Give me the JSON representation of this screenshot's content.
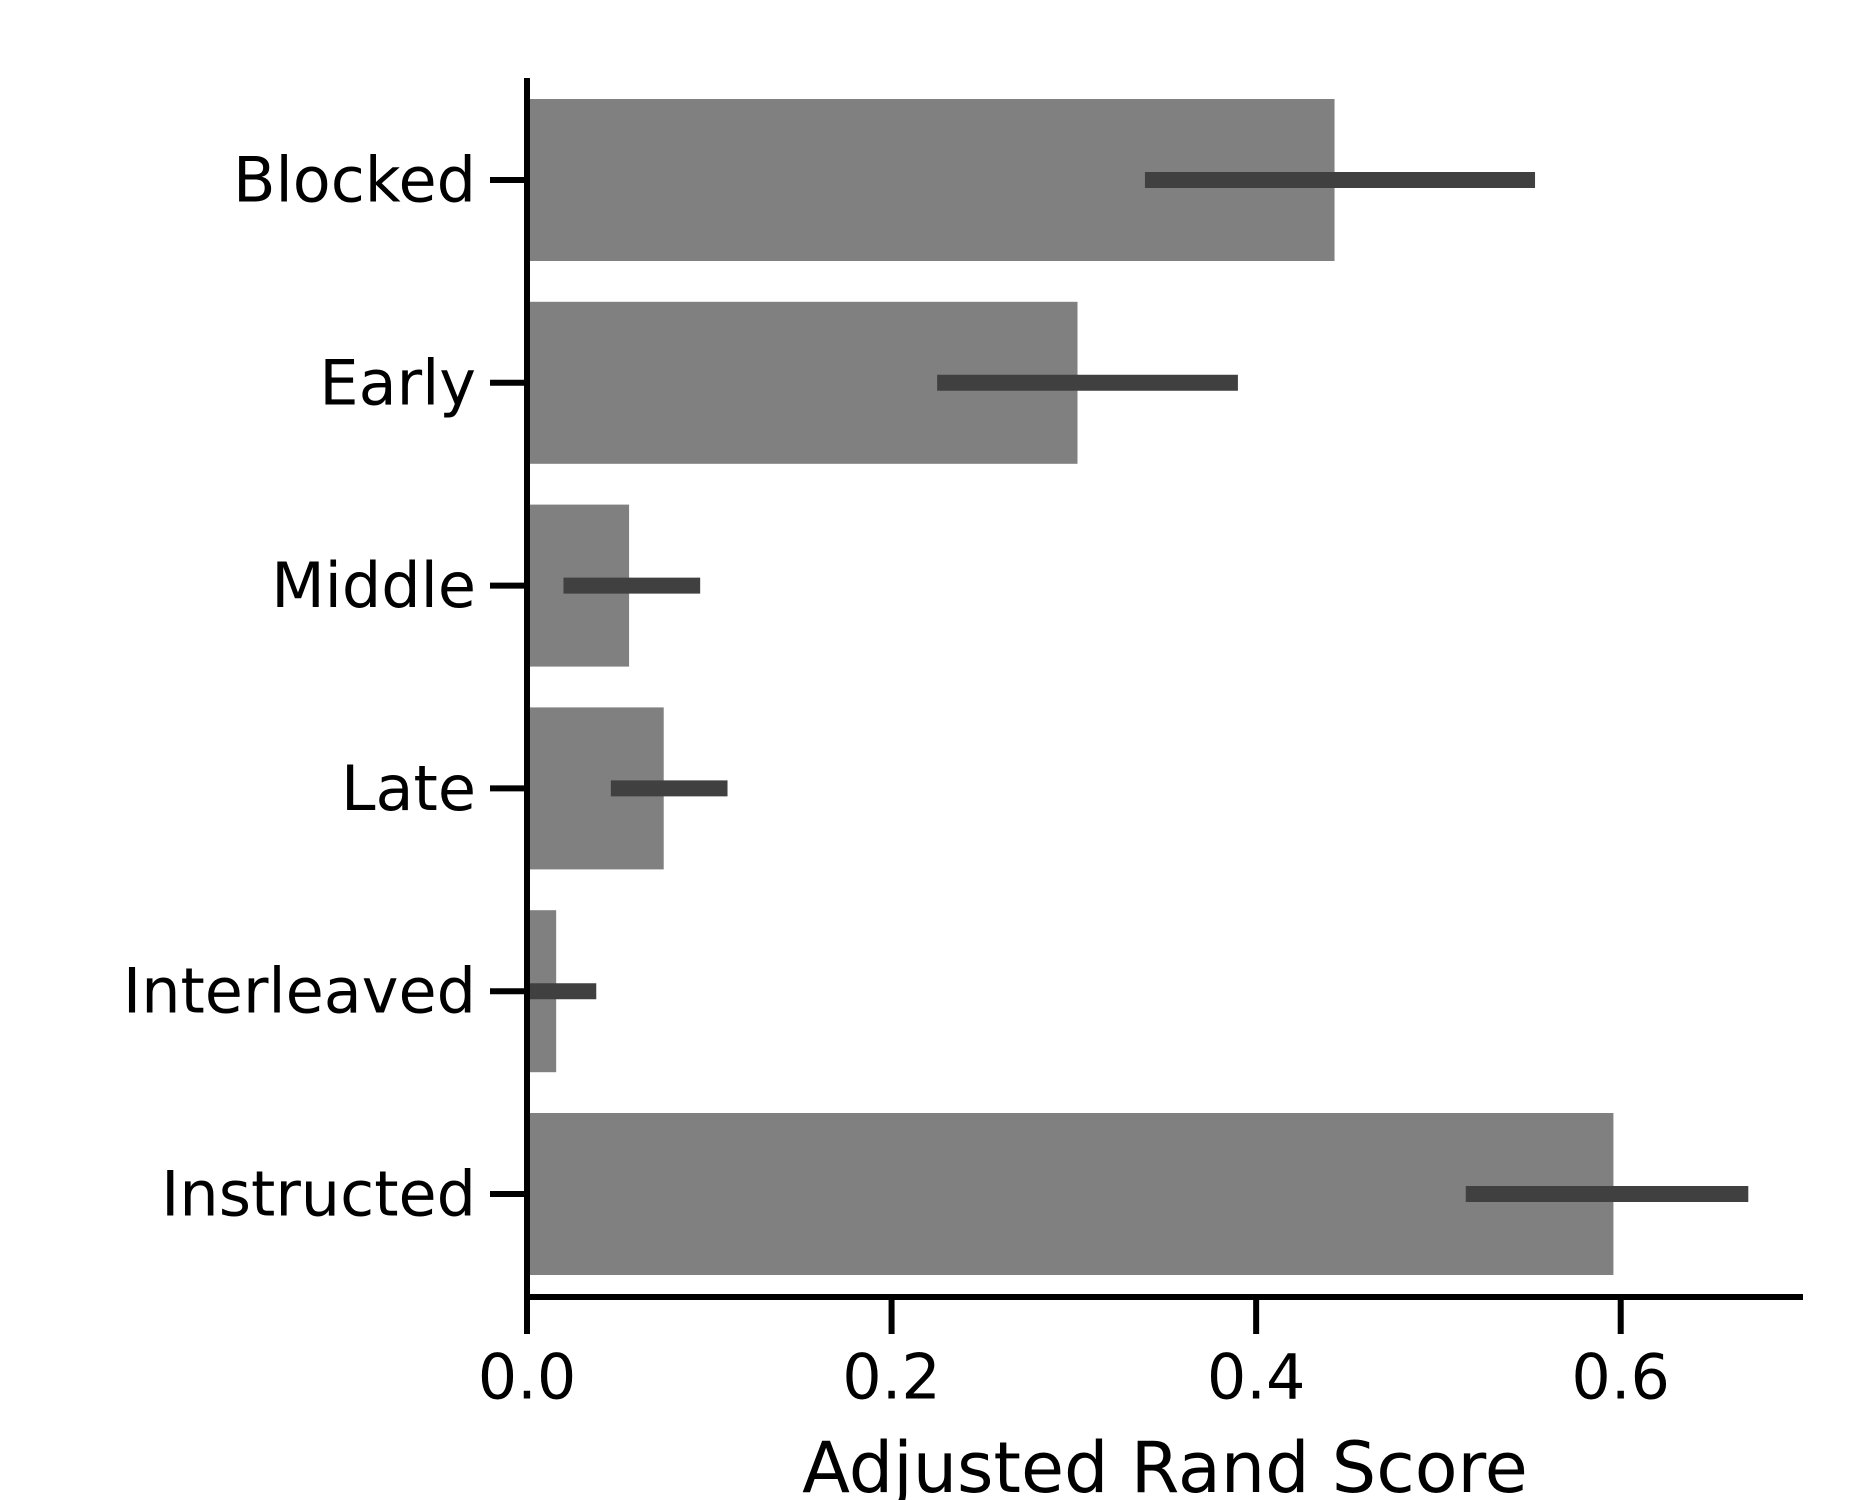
{
  "chart_data": {
    "type": "bar",
    "orientation": "horizontal",
    "categories": [
      "Blocked",
      "Early",
      "Middle",
      "Late",
      "Interleaved",
      "Instructed"
    ],
    "values": [
      0.443,
      0.302,
      0.056,
      0.075,
      0.016,
      0.596
    ],
    "error_bars": [
      [
        0.339,
        0.553
      ],
      [
        0.225,
        0.39
      ],
      [
        0.02,
        0.095
      ],
      [
        0.046,
        0.11
      ],
      [
        0.0,
        0.038
      ],
      [
        0.515,
        0.67
      ]
    ],
    "title": "",
    "xlabel": "Adjusted Rand Score",
    "ylabel": "",
    "xlim": [
      0,
      0.7
    ],
    "xticks": [
      0.0,
      0.2,
      0.4,
      0.6
    ],
    "xtick_labels": [
      "0.0",
      "0.2",
      "0.4",
      "0.6"
    ],
    "grid": false,
    "legend": "none",
    "colors": {
      "bar": "#808080",
      "error_bar": "#404040",
      "axis": "#000000"
    }
  }
}
